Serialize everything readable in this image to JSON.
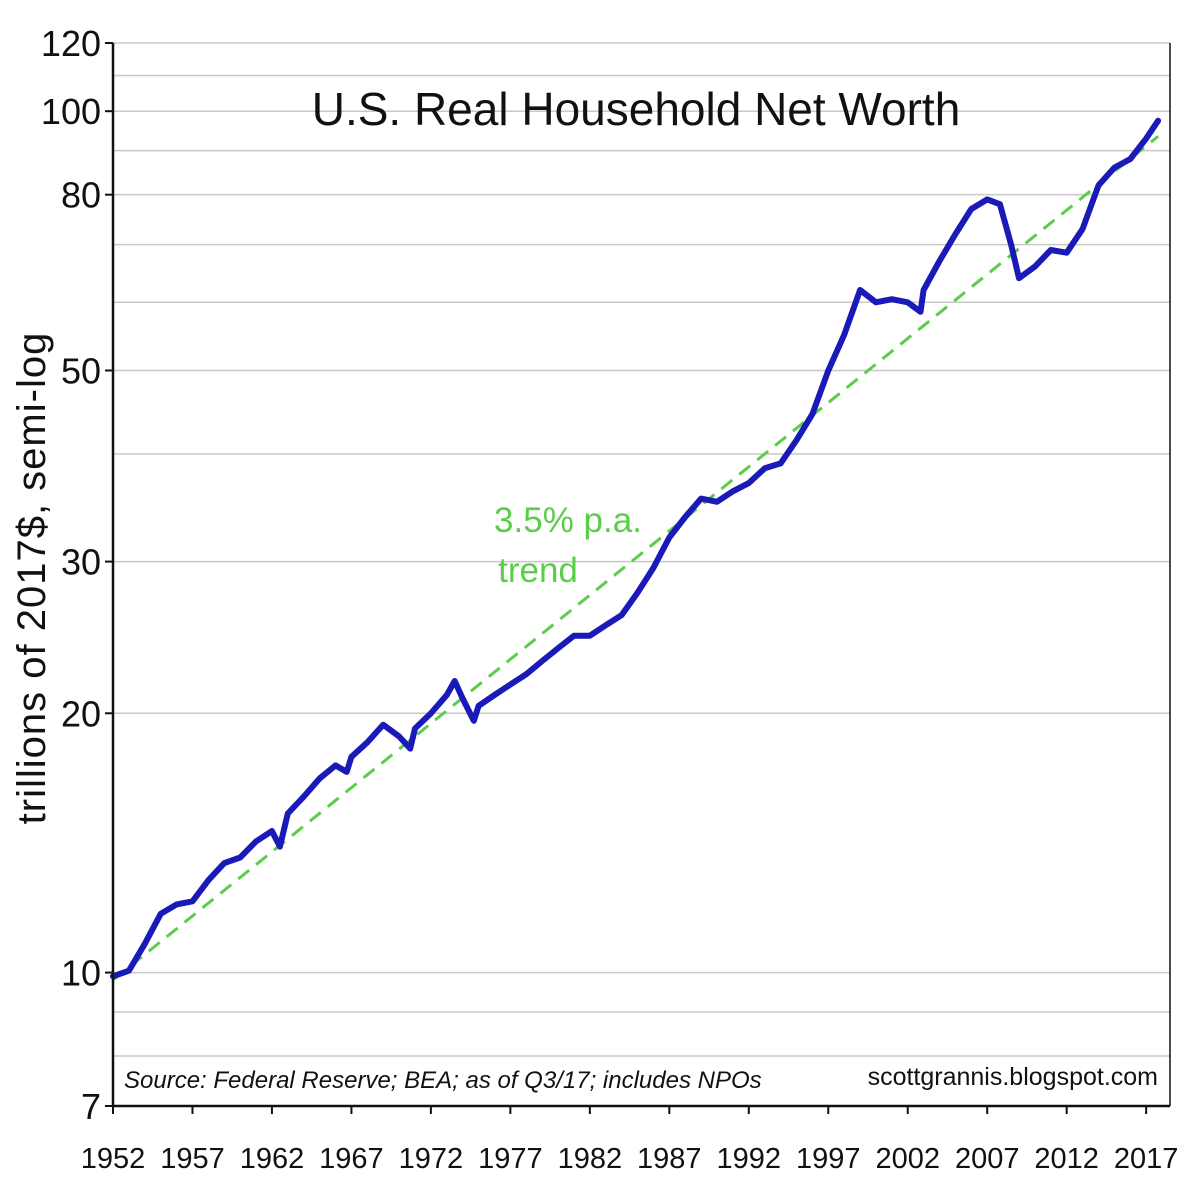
{
  "chart_data": {
    "type": "line",
    "title": "U.S. Real Household Net Worth",
    "ylabel": "trillions of 2017$, semi-log",
    "xlabel": "",
    "yscale": "log",
    "ylim": [
      7,
      120
    ],
    "xlim": [
      1952,
      2018.5
    ],
    "y_ticks": [
      7,
      10,
      20,
      30,
      50,
      80,
      100,
      120
    ],
    "x_ticks": [
      1952,
      1957,
      1962,
      1967,
      1972,
      1977,
      1982,
      1987,
      1992,
      1997,
      2002,
      2007,
      2012,
      2017
    ],
    "grid": "horizontal",
    "colors": {
      "series": "#1a1ab8",
      "trend": "#5ccd4a",
      "grid": "#c8c8c8"
    },
    "annotation": {
      "line1": "3.5% p.a.",
      "line2": "trend"
    },
    "source": "Source: Federal Reserve; BEA; as of Q3/17; includes NPOs",
    "credit": "scottgrannis.blogspot.com",
    "series": [
      {
        "x": [
          1952,
          1953,
          1954,
          1955,
          1956,
          1957,
          1958,
          1959,
          1960,
          1961,
          1962,
          1962.5,
          1963,
          1964,
          1965,
          1966,
          1966.7,
          1967,
          1968,
          1969,
          1970,
          1970.7,
          1971,
          1972,
          1973,
          1973.5,
          1974,
          1974.7,
          1975,
          1976,
          1977,
          1978,
          1979,
          1980,
          1981,
          1982,
          1983,
          1984,
          1985,
          1986,
          1987,
          1988,
          1989,
          1990,
          1991,
          1992,
          1993,
          1994,
          1995,
          1996,
          1997,
          1998,
          1999,
          2000,
          2001,
          2002,
          2002.8,
          2003,
          2004,
          2005,
          2006,
          2007,
          2007.8,
          2008.5,
          2009,
          2010,
          2011,
          2012,
          2013,
          2014,
          2015,
          2016,
          2017,
          2017.75
        ],
        "values": [
          9.9,
          10.05,
          10.8,
          11.7,
          12.0,
          12.1,
          12.8,
          13.4,
          13.6,
          14.2,
          14.6,
          14.0,
          15.3,
          16.0,
          16.8,
          17.4,
          17.1,
          17.8,
          18.5,
          19.4,
          18.8,
          18.2,
          19.2,
          20.0,
          21.0,
          21.8,
          20.8,
          19.6,
          20.4,
          21.0,
          21.6,
          22.2,
          23.0,
          23.8,
          24.6,
          24.6,
          25.3,
          26.0,
          27.6,
          29.5,
          32.0,
          33.8,
          35.5,
          35.2,
          36.2,
          37.0,
          38.5,
          39.0,
          41.5,
          44.5,
          50.0,
          55.0,
          62.0,
          60.0,
          60.5,
          60.0,
          58.5,
          62.0,
          67.0,
          72.0,
          77.0,
          79.0,
          78.0,
          70.0,
          64.0,
          66.0,
          69.0,
          68.5,
          73.0,
          82.0,
          86.0,
          88.0,
          93.0,
          97.5
        ]
      },
      {
        "name": "3.5% p.a. trend",
        "x": [
          1952,
          2017.75
        ],
        "values": [
          9.8,
          93.5
        ]
      }
    ]
  }
}
